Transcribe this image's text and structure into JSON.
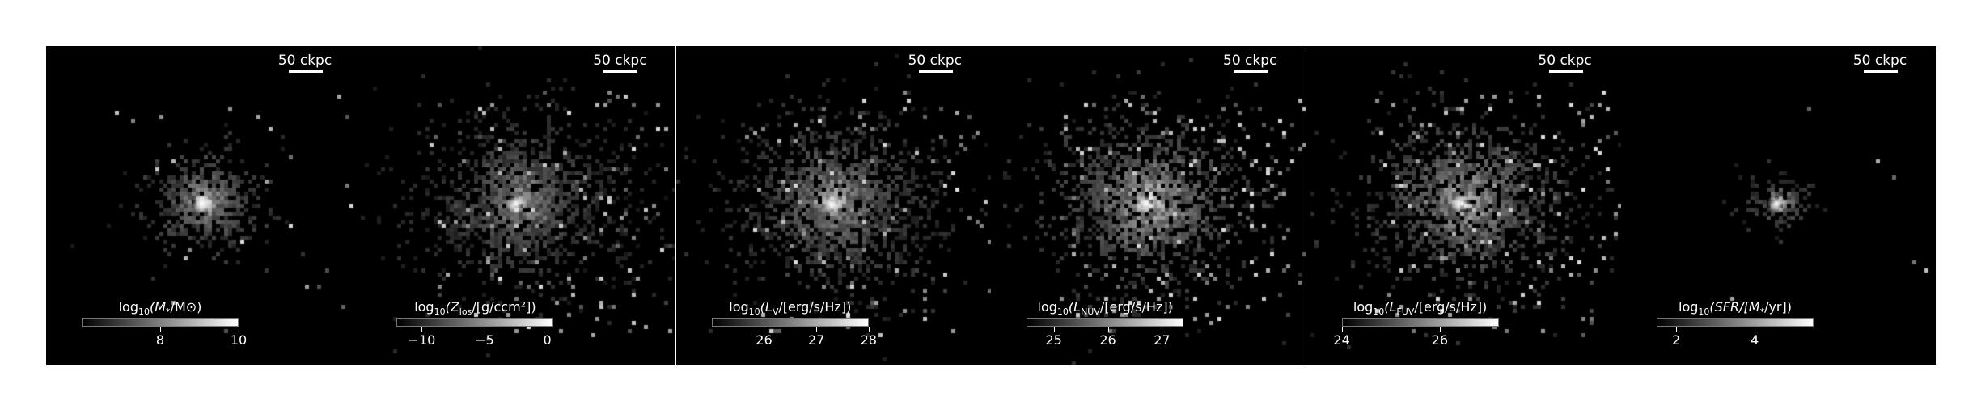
{
  "figure": {
    "panels": [
      {
        "scale_label": "50 ckpc",
        "colorbar": {
          "label_prefix": "log",
          "label_sub": "10",
          "label_body": "(M",
          "label_body_sub": "*",
          "label_tail": "/M⊙)",
          "range": [
            6.0,
            10.0
          ],
          "ticks": [
            {
              "value": 8,
              "label": "8"
            },
            {
              "value": 10,
              "label": "10"
            }
          ]
        },
        "image": {
          "extent": "compact",
          "brightness": 1.0,
          "scatter": 0.15,
          "seed": 11
        }
      },
      {
        "scale_label": "50 ckpc",
        "colorbar": {
          "label_prefix": "log",
          "label_sub": "10",
          "label_body": "(Z",
          "label_body_sub": "los",
          "label_tail": "/[g/ccm²])",
          "range": [
            -12.0,
            0.5
          ],
          "ticks": [
            {
              "value": -10,
              "label": "−10"
            },
            {
              "value": -5,
              "label": "−5"
            },
            {
              "value": 0,
              "label": "0"
            }
          ]
        },
        "image": {
          "extent": "extended",
          "brightness": 0.75,
          "scatter": 0.9,
          "seed": 23
        }
      },
      {
        "scale_label": "50 ckpc",
        "colorbar": {
          "label_prefix": "log",
          "label_sub": "10",
          "label_body": "(L",
          "label_body_sub": "V",
          "label_tail": "/[erg/s/Hz])",
          "range": [
            25.0,
            28.0
          ],
          "ticks": [
            {
              "value": 26,
              "label": "26"
            },
            {
              "value": 27,
              "label": "27"
            },
            {
              "value": 28,
              "label": "28"
            }
          ]
        },
        "image": {
          "extent": "extended",
          "brightness": 0.85,
          "scatter": 0.75,
          "seed": 37
        }
      },
      {
        "scale_label": "50 ckpc",
        "colorbar": {
          "label_prefix": "log",
          "label_sub": "10",
          "label_body": "(L",
          "label_body_sub": "NUV",
          "label_tail": "/[erg/s/Hz])",
          "range": [
            24.5,
            27.4
          ],
          "ticks": [
            {
              "value": 25,
              "label": "25"
            },
            {
              "value": 26,
              "label": "26"
            },
            {
              "value": 27,
              "label": "27"
            }
          ]
        },
        "image": {
          "extent": "extended",
          "brightness": 1.0,
          "scatter": 1.0,
          "seed": 53
        }
      },
      {
        "scale_label": "50 ckpc",
        "colorbar": {
          "label_prefix": "log",
          "label_sub": "10",
          "label_body": "(L",
          "label_body_sub": "FUV",
          "label_tail": "/[erg/s/Hz])",
          "range": [
            24.0,
            27.2
          ],
          "ticks": [
            {
              "value": 24,
              "label": "24"
            },
            {
              "value": 26,
              "label": "26"
            }
          ]
        },
        "image": {
          "extent": "extended",
          "brightness": 0.95,
          "scatter": 1.0,
          "seed": 71
        }
      },
      {
        "scale_label": "50 ckpc",
        "colorbar": {
          "label_prefix": "log",
          "label_sub": "10",
          "label_body": "(SFR/[M",
          "label_body_sub": "*",
          "label_tail": "/yr])",
          "range": [
            1.5,
            5.5
          ],
          "ticks": [
            {
              "value": 2,
              "label": "2"
            },
            {
              "value": 4,
              "label": "4"
            }
          ]
        },
        "image": {
          "extent": "tiny",
          "brightness": 0.9,
          "scatter": 0.05,
          "seed": 89
        }
      }
    ]
  }
}
